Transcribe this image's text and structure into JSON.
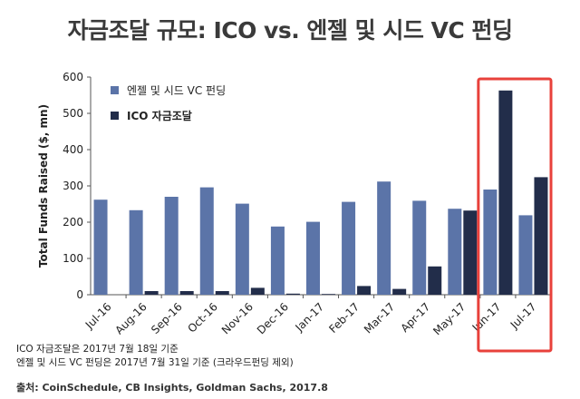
{
  "title": "자금조달 규모: ICO vs. 엔젤 및 시드 VC 펀딩",
  "chart_data": {
    "type": "bar",
    "categories": [
      "Jul-16",
      "Aug-16",
      "Sep-16",
      "Oct-16",
      "Nov-16",
      "Dec-16",
      "Jan-17",
      "Feb-17",
      "Mar-17",
      "Apr-17",
      "May-17",
      "Jun-17",
      "Jul-17"
    ],
    "series": [
      {
        "name": "엔젤 및 시드 VC 펀딩",
        "color": "#5b74a8",
        "values": [
          262,
          233,
          270,
          296,
          251,
          188,
          201,
          256,
          312,
          259,
          237,
          290,
          219
        ]
      },
      {
        "name": "ICO 자금조달",
        "color": "#222d4a",
        "values": [
          0,
          10,
          10,
          10,
          19,
          3,
          2,
          24,
          16,
          78,
          232,
          563,
          324
        ]
      }
    ],
    "ylabel": "Total Funds Raised ($, mn)",
    "xlabel": "",
    "ylim": [
      0,
      600
    ],
    "yticks": [
      0,
      100,
      200,
      300,
      400,
      500,
      600
    ],
    "legend": "top-left",
    "grid": false,
    "highlight_categories": [
      "Jun-17",
      "Jul-17"
    ],
    "highlight_color": "#e8413b"
  },
  "notes": [
    "ICO 자금조달은 2017년 7월 18일 기준",
    "엔젤 및 시드 VC 펀딩은 2017년 7월 31일 기준 (크라우드펀딩 제외)"
  ],
  "source": "출처: CoinSchedule, CB Insights, Goldman Sachs, 2017.8"
}
